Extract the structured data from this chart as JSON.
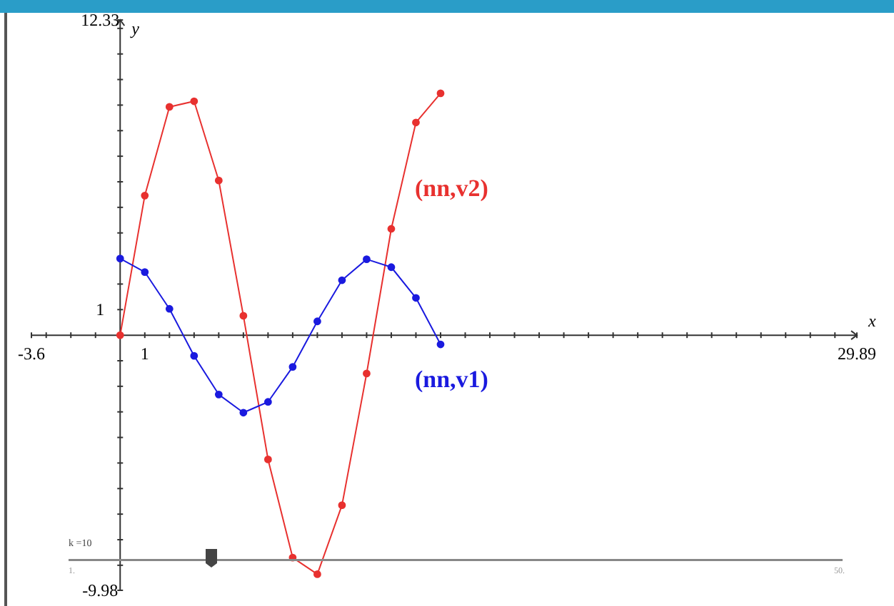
{
  "chart_data": {
    "type": "line",
    "xlabel": "x",
    "ylabel": "y",
    "x": [
      0,
      1,
      2,
      3,
      4,
      5,
      6,
      7,
      8,
      9,
      10,
      11,
      12,
      13
    ],
    "series": [
      {
        "name": "(nn,v2)",
        "color": "#e8312f",
        "values": [
          0,
          5.46,
          8.93,
          9.15,
          6.05,
          0.76,
          -4.86,
          -8.7,
          -9.35,
          -6.65,
          -1.5,
          4.16,
          8.32,
          9.46
        ]
      },
      {
        "name": "(nn,v1)",
        "color": "#1a1adf",
        "values": [
          3.0,
          2.47,
          1.03,
          -0.81,
          -2.32,
          -3.03,
          -2.61,
          -1.24,
          0.54,
          2.15,
          2.97,
          2.66,
          1.46,
          -0.36
        ]
      }
    ],
    "xlim": [
      -3.6,
      29.89
    ],
    "xticks": [
      {
        "value": -3.6,
        "label": "-3.6"
      },
      {
        "value": -3,
        "label": null
      },
      {
        "value": -2,
        "label": null
      },
      {
        "value": -1,
        "label": null
      },
      {
        "value": 1,
        "label": "1"
      },
      {
        "value": 2,
        "label": null
      },
      {
        "value": 3,
        "label": null
      },
      {
        "value": 4,
        "label": null
      },
      {
        "value": 5,
        "label": null
      },
      {
        "value": 6,
        "label": null
      },
      {
        "value": 7,
        "label": null
      },
      {
        "value": 8,
        "label": null
      },
      {
        "value": 9,
        "label": null
      },
      {
        "value": 10,
        "label": null
      },
      {
        "value": 11,
        "label": null
      },
      {
        "value": 12,
        "label": null
      },
      {
        "value": 13,
        "label": null
      },
      {
        "value": 14,
        "label": null
      },
      {
        "value": 15,
        "label": null
      },
      {
        "value": 16,
        "label": null
      },
      {
        "value": 17,
        "label": null
      },
      {
        "value": 18,
        "label": null
      },
      {
        "value": 19,
        "label": null
      },
      {
        "value": 20,
        "label": null
      },
      {
        "value": 21,
        "label": null
      },
      {
        "value": 22,
        "label": null
      },
      {
        "value": 23,
        "label": null
      },
      {
        "value": 24,
        "label": null
      },
      {
        "value": 25,
        "label": null
      },
      {
        "value": 26,
        "label": null
      },
      {
        "value": 27,
        "label": null
      },
      {
        "value": 28,
        "label": null
      },
      {
        "value": 29,
        "label": null
      },
      {
        "value": 29.89,
        "label": "29.89"
      }
    ],
    "ylim": [
      -9.98,
      12.33
    ],
    "yticks": [
      {
        "value": -9.98,
        "label": "-9.98"
      },
      {
        "value": -9,
        "label": null
      },
      {
        "value": -8,
        "label": null
      },
      {
        "value": -7,
        "label": null
      },
      {
        "value": -6,
        "label": null
      },
      {
        "value": -5,
        "label": null
      },
      {
        "value": -4,
        "label": null
      },
      {
        "value": -3,
        "label": null
      },
      {
        "value": -2,
        "label": null
      },
      {
        "value": -1,
        "label": null
      },
      {
        "value": 1,
        "label": "1"
      },
      {
        "value": 2,
        "label": null
      },
      {
        "value": 3,
        "label": null
      },
      {
        "value": 4,
        "label": null
      },
      {
        "value": 5,
        "label": null
      },
      {
        "value": 6,
        "label": null
      },
      {
        "value": 7,
        "label": null
      },
      {
        "value": 8,
        "label": null
      },
      {
        "value": 9,
        "label": null
      },
      {
        "value": 10,
        "label": null
      },
      {
        "value": 11,
        "label": null
      },
      {
        "value": 12,
        "label": null
      },
      {
        "value": 12.33,
        "label": "12.33"
      }
    ],
    "marker": "circle",
    "line_style": "solid",
    "grid": false,
    "annotations": [
      "k =10",
      "1.",
      "50."
    ]
  }
}
